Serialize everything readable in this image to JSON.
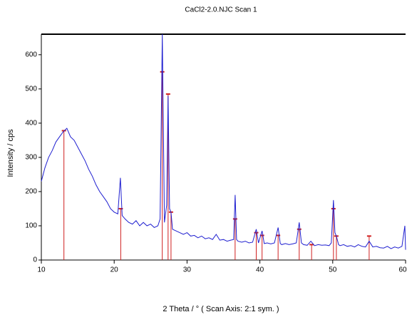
{
  "chart_data": {
    "type": "line",
    "title": "CaCl2-2.0.NJC Scan 1",
    "x_label": "2 Theta / ° ( Scan Axis: 2:1 sym. )",
    "y_label": "Intensity / cps",
    "x": [
      10,
      10.5,
      11,
      11.5,
      12,
      12.5,
      13,
      13.5,
      14,
      14.5,
      15,
      15.5,
      16,
      16.5,
      17,
      17.5,
      18,
      18.5,
      19,
      19.5,
      20,
      20.5,
      20.85,
      21.1,
      21.5,
      22,
      22.5,
      23,
      23.5,
      24,
      24.5,
      25,
      25.5,
      26,
      26.3,
      26.6,
      26.9,
      27.2,
      27.4,
      27.6,
      27.8,
      28,
      28.5,
      29,
      29.5,
      30,
      30.5,
      31,
      31.5,
      32,
      32.5,
      33,
      33.5,
      34,
      34.5,
      35,
      35.5,
      36,
      36.4,
      36.6,
      36.8,
      37,
      37.5,
      38,
      38.5,
      39,
      39.5,
      39.8,
      40.3,
      40.6,
      41,
      41.5,
      42,
      42.5,
      42.8,
      43,
      43.5,
      44,
      44.5,
      45,
      45.4,
      45.7,
      46,
      46.5,
      47,
      47.5,
      48,
      48.5,
      49,
      49.5,
      49.8,
      50.1,
      50.3,
      50.5,
      50.8,
      51,
      51.5,
      52,
      52.5,
      53,
      53.5,
      54,
      54.5,
      55,
      55.5,
      56,
      56.5,
      57,
      57.5,
      58,
      58.5,
      59,
      59.5,
      59.9,
      60
    ],
    "series": [
      {
        "color": "#1f1fd0",
        "values": [
          230,
          270,
          300,
          320,
          345,
          360,
          375,
          385,
          360,
          350,
          330,
          310,
          290,
          265,
          245,
          220,
          200,
          185,
          170,
          150,
          140,
          135,
          240,
          130,
          120,
          110,
          105,
          115,
          100,
          110,
          100,
          105,
          95,
          100,
          120,
          660,
          110,
          160,
          480,
          150,
          140,
          90,
          85,
          80,
          75,
          80,
          70,
          72,
          65,
          70,
          62,
          65,
          60,
          75,
          58,
          60,
          55,
          58,
          60,
          190,
          60,
          55,
          52,
          55,
          50,
          52,
          90,
          50,
          85,
          48,
          50,
          47,
          50,
          95,
          48,
          45,
          48,
          45,
          47,
          50,
          110,
          50,
          45,
          43,
          55,
          42,
          45,
          43,
          44,
          42,
          50,
          175,
          80,
          70,
          45,
          42,
          45,
          40,
          42,
          38,
          45,
          40,
          38,
          55,
          38,
          40,
          36,
          35,
          40,
          33,
          38,
          35,
          40,
          100,
          30
        ]
      }
    ],
    "sticks": {
      "color": "#d02020",
      "x": [
        13.1,
        20.9,
        26.6,
        27.4,
        27.8,
        36.6,
        39.5,
        40.3,
        42.5,
        45.4,
        47.1,
        50.1,
        50.5,
        55.0
      ],
      "values": [
        378,
        150,
        550,
        485,
        140,
        120,
        80,
        72,
        72,
        90,
        45,
        150,
        70,
        70
      ]
    },
    "xlim": [
      10,
      60
    ],
    "ylim": [
      0,
      660
    ],
    "xticks": [
      10,
      20,
      30,
      40,
      50,
      60
    ],
    "yticks": [
      0,
      100,
      200,
      300,
      400,
      500,
      600
    ]
  }
}
